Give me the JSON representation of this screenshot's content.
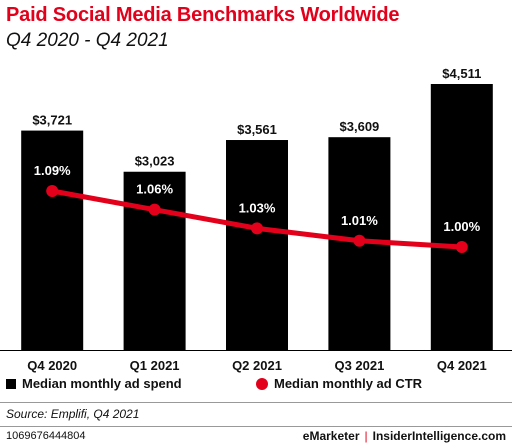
{
  "title": "Paid Social Media Benchmarks Worldwide",
  "subtitle": "Q4 2020 - Q4 2021",
  "chart_data": {
    "type": "bar",
    "categories": [
      "Q4 2020",
      "Q1 2021",
      "Q2 2021",
      "Q3 2021",
      "Q4 2021"
    ],
    "series": [
      {
        "name": "Median monthly ad spend",
        "type": "bar",
        "values": [
          3721,
          3023,
          3561,
          3609,
          4511
        ],
        "labels": [
          "$3,721",
          "$3,023",
          "$3,561",
          "$3,609",
          "$4,511"
        ],
        "color": "#000000"
      },
      {
        "name": "Median monthly ad CTR",
        "type": "line",
        "values": [
          1.09,
          1.06,
          1.03,
          1.01,
          1.0
        ],
        "labels": [
          "1.09%",
          "1.06%",
          "1.03%",
          "1.01%",
          "1.00%"
        ],
        "color": "#e3001b"
      }
    ],
    "legend_position": "bottom",
    "grid": false
  },
  "legend": {
    "bar_label": "Median monthly ad spend",
    "line_label": "Median monthly ad CTR"
  },
  "source": "Source: Emplifi, Q4 2021",
  "footer": {
    "id": "1069676444804",
    "brand_left": "eMarketer",
    "separator": "|",
    "brand_right": "InsiderIntelligence.com"
  },
  "colors": {
    "accent": "#e3001b",
    "bar": "#000000"
  }
}
